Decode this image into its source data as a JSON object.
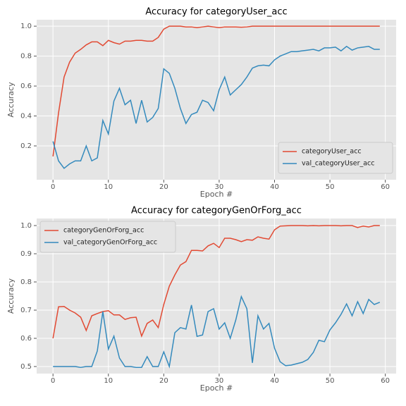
{
  "chart_data": [
    {
      "type": "line",
      "title": "Accuracy for categoryUser_acc",
      "xlabel": "Epoch #",
      "ylabel": "Accuracy",
      "x": [
        0,
        1,
        2,
        3,
        4,
        5,
        6,
        7,
        8,
        9,
        10,
        11,
        12,
        13,
        14,
        15,
        16,
        17,
        18,
        19,
        20,
        21,
        22,
        23,
        24,
        25,
        26,
        27,
        28,
        29,
        30,
        31,
        32,
        33,
        34,
        35,
        36,
        37,
        38,
        39,
        40,
        41,
        42,
        43,
        44,
        45,
        46,
        47,
        48,
        49,
        50,
        51,
        52,
        53,
        54,
        55,
        56,
        57,
        58,
        59
      ],
      "series": [
        {
          "name": "categoryUser_acc",
          "color": "#E24A33",
          "values": [
            0.13,
            0.42,
            0.66,
            0.76,
            0.82,
            0.845,
            0.875,
            0.895,
            0.895,
            0.87,
            0.905,
            0.89,
            0.88,
            0.9,
            0.9,
            0.905,
            0.905,
            0.9,
            0.9,
            0.925,
            0.98,
            1.0,
            1.0,
            1.0,
            0.995,
            0.995,
            0.99,
            0.995,
            1.0,
            0.995,
            0.99,
            0.995,
            0.995,
            0.995,
            0.993,
            0.995,
            1.0,
            1.0,
            1.0,
            1.0,
            1.0,
            1.0,
            1.0,
            1.0,
            1.0,
            1.0,
            1.0,
            1.0,
            1.0,
            1.0,
            1.0,
            1.0,
            1.0,
            1.0,
            1.0,
            1.0,
            1.0,
            1.0,
            1.0,
            1.0
          ]
        },
        {
          "name": "val_categoryUser_acc",
          "color": "#348ABD",
          "values": [
            0.23,
            0.1,
            0.05,
            0.08,
            0.1,
            0.1,
            0.2,
            0.1,
            0.12,
            0.37,
            0.28,
            0.5,
            0.585,
            0.475,
            0.505,
            0.35,
            0.505,
            0.36,
            0.39,
            0.45,
            0.715,
            0.685,
            0.585,
            0.45,
            0.35,
            0.41,
            0.425,
            0.505,
            0.49,
            0.435,
            0.575,
            0.66,
            0.54,
            0.575,
            0.61,
            0.66,
            0.72,
            0.735,
            0.74,
            0.735,
            0.775,
            0.8,
            0.815,
            0.83,
            0.83,
            0.835,
            0.84,
            0.845,
            0.835,
            0.855,
            0.855,
            0.86,
            0.835,
            0.865,
            0.84,
            0.855,
            0.86,
            0.865,
            0.845,
            0.845
          ]
        }
      ],
      "xlim": [
        -2.95,
        61.95
      ],
      "xticks": [
        0,
        10,
        20,
        30,
        40,
        50,
        60
      ],
      "ylim": [
        -0.026,
        1.043
      ],
      "yticks": [
        0.2,
        0.4,
        0.6,
        0.8,
        {
          "value": 1,
          "label": "1.0"
        }
      ],
      "grid": true,
      "legend": "lower right"
    },
    {
      "type": "line",
      "title": "Accuracy for categoryGenOrForg_acc",
      "xlabel": "Epoch #",
      "ylabel": "Accuracy",
      "x": [
        0,
        1,
        2,
        3,
        4,
        5,
        6,
        7,
        8,
        9,
        10,
        11,
        12,
        13,
        14,
        15,
        16,
        17,
        18,
        19,
        20,
        21,
        22,
        23,
        24,
        25,
        26,
        27,
        28,
        29,
        30,
        31,
        32,
        33,
        34,
        35,
        36,
        37,
        38,
        39,
        40,
        41,
        42,
        43,
        44,
        45,
        46,
        47,
        48,
        49,
        50,
        51,
        52,
        53,
        54,
        55,
        56,
        57,
        58,
        59
      ],
      "series": [
        {
          "name": "categoryGenOrForg_acc",
          "color": "#E24A33",
          "values": [
            0.6,
            0.712,
            0.713,
            0.7,
            0.69,
            0.675,
            0.628,
            0.68,
            0.688,
            0.695,
            0.698,
            0.683,
            0.683,
            0.667,
            0.673,
            0.675,
            0.608,
            0.653,
            0.665,
            0.638,
            0.72,
            0.785,
            0.825,
            0.86,
            0.872,
            0.912,
            0.912,
            0.91,
            0.928,
            0.937,
            0.922,
            0.955,
            0.955,
            0.95,
            0.943,
            0.95,
            0.948,
            0.96,
            0.955,
            0.952,
            0.985,
            0.998,
            0.999,
            1.0,
            1.0,
            1.0,
            0.999,
            1.0,
            0.999,
            1.0,
            1.0,
            1.0,
            0.999,
            1.0,
            1.0,
            0.993,
            0.998,
            0.995,
            1.0,
            1.0
          ]
        },
        {
          "name": "val_categoryGenOrForg_acc",
          "color": "#348ABD",
          "values": [
            0.5,
            0.5,
            0.5,
            0.5,
            0.5,
            0.497,
            0.5,
            0.5,
            0.555,
            0.695,
            0.562,
            0.608,
            0.53,
            0.5,
            0.5,
            0.497,
            0.497,
            0.535,
            0.5,
            0.5,
            0.552,
            0.5,
            0.62,
            0.638,
            0.633,
            0.718,
            0.607,
            0.612,
            0.695,
            0.705,
            0.633,
            0.655,
            0.6,
            0.665,
            0.748,
            0.705,
            0.513,
            0.68,
            0.633,
            0.653,
            0.565,
            0.517,
            0.503,
            0.505,
            0.51,
            0.515,
            0.525,
            0.55,
            0.593,
            0.588,
            0.63,
            0.655,
            0.685,
            0.722,
            0.68,
            0.73,
            0.688,
            0.738,
            0.72,
            0.728
          ]
        }
      ],
      "xlim": [
        -2.95,
        61.95
      ],
      "xticks": [
        0,
        10,
        20,
        30,
        40,
        50,
        60
      ],
      "ylim": [
        0.475,
        1.025
      ],
      "yticks": [
        0.5,
        0.6,
        0.7,
        0.8,
        0.9,
        {
          "value": 1,
          "label": "1.0"
        }
      ],
      "grid": true,
      "legend": "upper left"
    }
  ]
}
